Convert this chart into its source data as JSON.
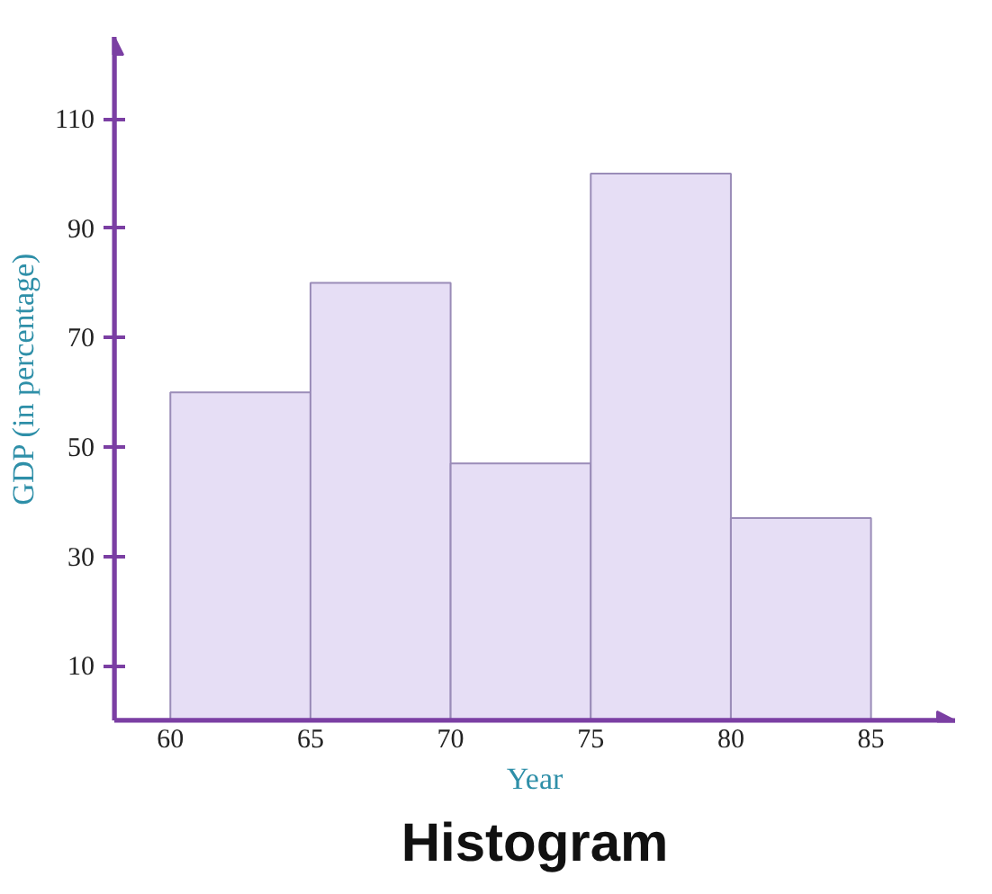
{
  "chart_data": {
    "type": "histogram",
    "title": "Histogram",
    "xlabel": "Year",
    "ylabel": "GDP (in percentage)",
    "bins": [
      60,
      65,
      70,
      75,
      80,
      85
    ],
    "values": [
      60,
      80,
      47,
      100,
      37
    ],
    "color": "#e6def5",
    "xlim": [
      58,
      88
    ],
    "ylim": [
      0,
      125
    ],
    "xticks": [
      60,
      65,
      70,
      75,
      80,
      85
    ],
    "yticks": [
      10,
      30,
      50,
      70,
      90,
      110
    ],
    "grid": false
  }
}
